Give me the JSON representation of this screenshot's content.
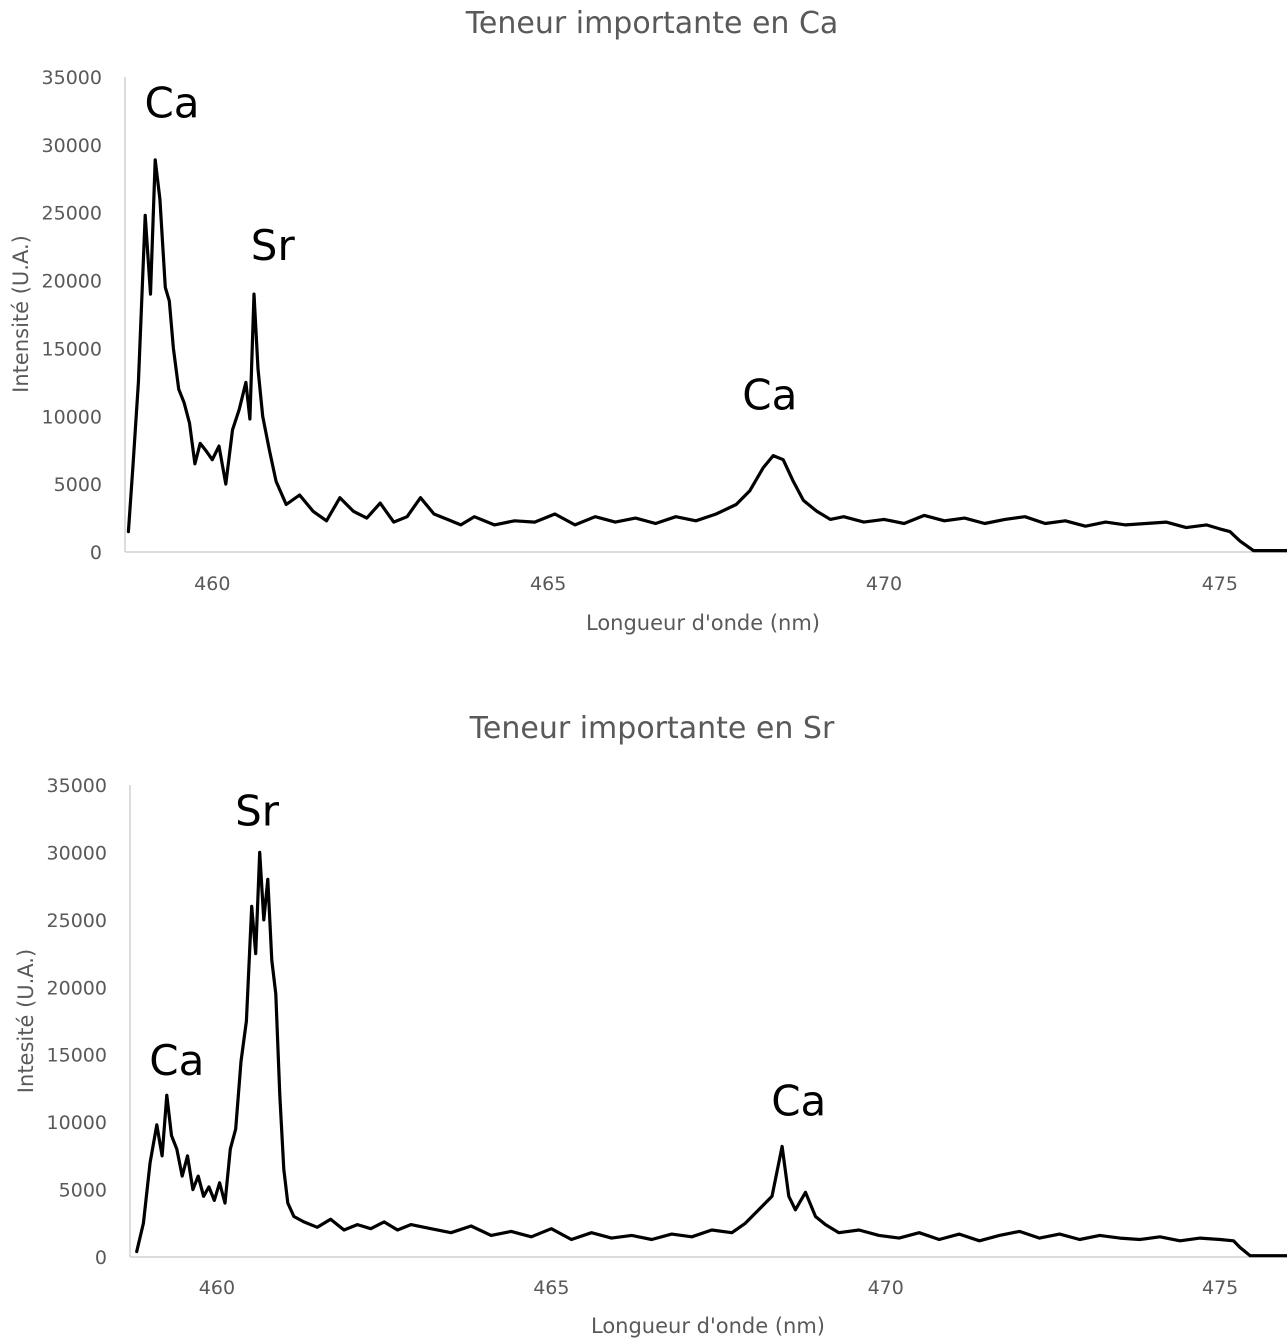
{
  "chart_data": [
    {
      "type": "line",
      "title": "Teneur importante en Ca",
      "xlabel": "Longueur d'onde (nm)",
      "ylabel": "Intensité (U.A.)",
      "xlim": [
        458.7,
        476
      ],
      "ylim": [
        0,
        35000
      ],
      "xticks": [
        460,
        465,
        470,
        475
      ],
      "yticks": [
        0,
        5000,
        10000,
        15000,
        20000,
        25000,
        30000,
        35000
      ],
      "grid": false,
      "color": "#000000",
      "annotations": [
        {
          "text": "Ca",
          "x": 459.4,
          "y": 32000
        },
        {
          "text": "Sr",
          "x": 460.9,
          "y": 21500
        },
        {
          "text": "Ca",
          "x": 468.3,
          "y": 10500
        }
      ],
      "x": [
        458.75,
        458.82,
        458.9,
        459.0,
        459.08,
        459.15,
        459.22,
        459.3,
        459.36,
        459.42,
        459.5,
        459.58,
        459.66,
        459.74,
        459.82,
        459.9,
        460.0,
        460.1,
        460.2,
        460.3,
        460.4,
        460.5,
        460.56,
        460.62,
        460.68,
        460.75,
        460.85,
        460.95,
        461.1,
        461.3,
        461.5,
        461.7,
        461.9,
        462.1,
        462.3,
        462.5,
        462.7,
        462.9,
        463.1,
        463.3,
        463.5,
        463.7,
        463.9,
        464.2,
        464.5,
        464.8,
        465.1,
        465.4,
        465.7,
        466.0,
        466.3,
        466.6,
        466.9,
        467.2,
        467.5,
        467.8,
        468.0,
        468.2,
        468.35,
        468.5,
        468.65,
        468.8,
        469.0,
        469.2,
        469.4,
        469.7,
        470.0,
        470.3,
        470.6,
        470.9,
        471.2,
        471.5,
        471.8,
        472.1,
        472.4,
        472.7,
        473.0,
        473.3,
        473.6,
        473.9,
        474.2,
        474.5,
        474.8,
        475.0,
        475.15,
        475.3,
        475.5,
        475.8,
        476.0
      ],
      "y": [
        1500,
        6500,
        12500,
        24800,
        19000,
        28900,
        26000,
        19500,
        18500,
        15000,
        12000,
        11000,
        9500,
        6500,
        8000,
        7500,
        6800,
        7800,
        5000,
        9000,
        10500,
        12500,
        9800,
        19000,
        13500,
        10000,
        7500,
        5200,
        3500,
        4200,
        3000,
        2300,
        4000,
        3000,
        2500,
        3600,
        2200,
        2600,
        4000,
        2800,
        2400,
        2000,
        2600,
        2000,
        2300,
        2200,
        2800,
        2000,
        2600,
        2200,
        2500,
        2100,
        2600,
        2300,
        2800,
        3500,
        4500,
        6200,
        7100,
        6800,
        5200,
        3800,
        3000,
        2400,
        2600,
        2200,
        2400,
        2100,
        2700,
        2300,
        2500,
        2100,
        2400,
        2600,
        2100,
        2300,
        1900,
        2200,
        2000,
        2100,
        2200,
        1800,
        2000,
        1700,
        1500,
        800,
        100,
        100,
        100
      ]
    },
    {
      "type": "line",
      "title": "Teneur importante en Sr",
      "xlabel": "Longueur d'onde (nm)",
      "ylabel": "Intesité (U.A.)",
      "xlim": [
        458.7,
        476
      ],
      "ylim": [
        0,
        35000
      ],
      "xticks": [
        460,
        465,
        470,
        475
      ],
      "yticks": [
        0,
        5000,
        10000,
        15000,
        20000,
        25000,
        30000,
        35000
      ],
      "grid": false,
      "color": "#000000",
      "annotations": [
        {
          "text": "Ca",
          "x": 459.4,
          "y": 13500
        },
        {
          "text": "Sr",
          "x": 460.6,
          "y": 32000
        },
        {
          "text": "Ca",
          "x": 468.7,
          "y": 10500
        }
      ],
      "x": [
        458.8,
        458.9,
        459.0,
        459.1,
        459.18,
        459.25,
        459.32,
        459.4,
        459.48,
        459.56,
        459.64,
        459.72,
        459.8,
        459.88,
        459.96,
        460.04,
        460.12,
        460.2,
        460.28,
        460.36,
        460.44,
        460.52,
        460.58,
        460.64,
        460.7,
        460.76,
        460.82,
        460.88,
        460.94,
        461.0,
        461.06,
        461.15,
        461.3,
        461.5,
        461.7,
        461.9,
        462.1,
        462.3,
        462.5,
        462.7,
        462.9,
        463.2,
        463.5,
        463.8,
        464.1,
        464.4,
        464.7,
        465.0,
        465.3,
        465.6,
        465.9,
        466.2,
        466.5,
        466.8,
        467.1,
        467.4,
        467.7,
        467.9,
        468.1,
        468.3,
        468.45,
        468.55,
        468.65,
        468.8,
        468.95,
        469.1,
        469.3,
        469.6,
        469.9,
        470.2,
        470.5,
        470.8,
        471.1,
        471.4,
        471.7,
        472.0,
        472.3,
        472.6,
        472.9,
        473.2,
        473.5,
        473.8,
        474.1,
        474.4,
        474.7,
        475.0,
        475.2,
        475.3,
        475.45,
        475.7,
        476.0
      ],
      "y": [
        400,
        2500,
        7000,
        9800,
        7500,
        12000,
        9000,
        8000,
        6000,
        7500,
        5000,
        6000,
        4500,
        5200,
        4200,
        5500,
        4000,
        8000,
        9500,
        14500,
        17500,
        26000,
        22500,
        30000,
        25000,
        28000,
        22000,
        19500,
        12000,
        6500,
        4000,
        3000,
        2600,
        2200,
        2800,
        2000,
        2400,
        2100,
        2600,
        2000,
        2400,
        2100,
        1800,
        2300,
        1600,
        1900,
        1500,
        2100,
        1300,
        1800,
        1400,
        1600,
        1300,
        1700,
        1500,
        2000,
        1800,
        2500,
        3500,
        4500,
        8200,
        4500,
        3500,
        4800,
        3000,
        2400,
        1800,
        2000,
        1600,
        1400,
        1800,
        1300,
        1700,
        1200,
        1600,
        1900,
        1400,
        1700,
        1300,
        1600,
        1400,
        1300,
        1500,
        1200,
        1400,
        1300,
        1200,
        700,
        100,
        100,
        100
      ]
    }
  ]
}
